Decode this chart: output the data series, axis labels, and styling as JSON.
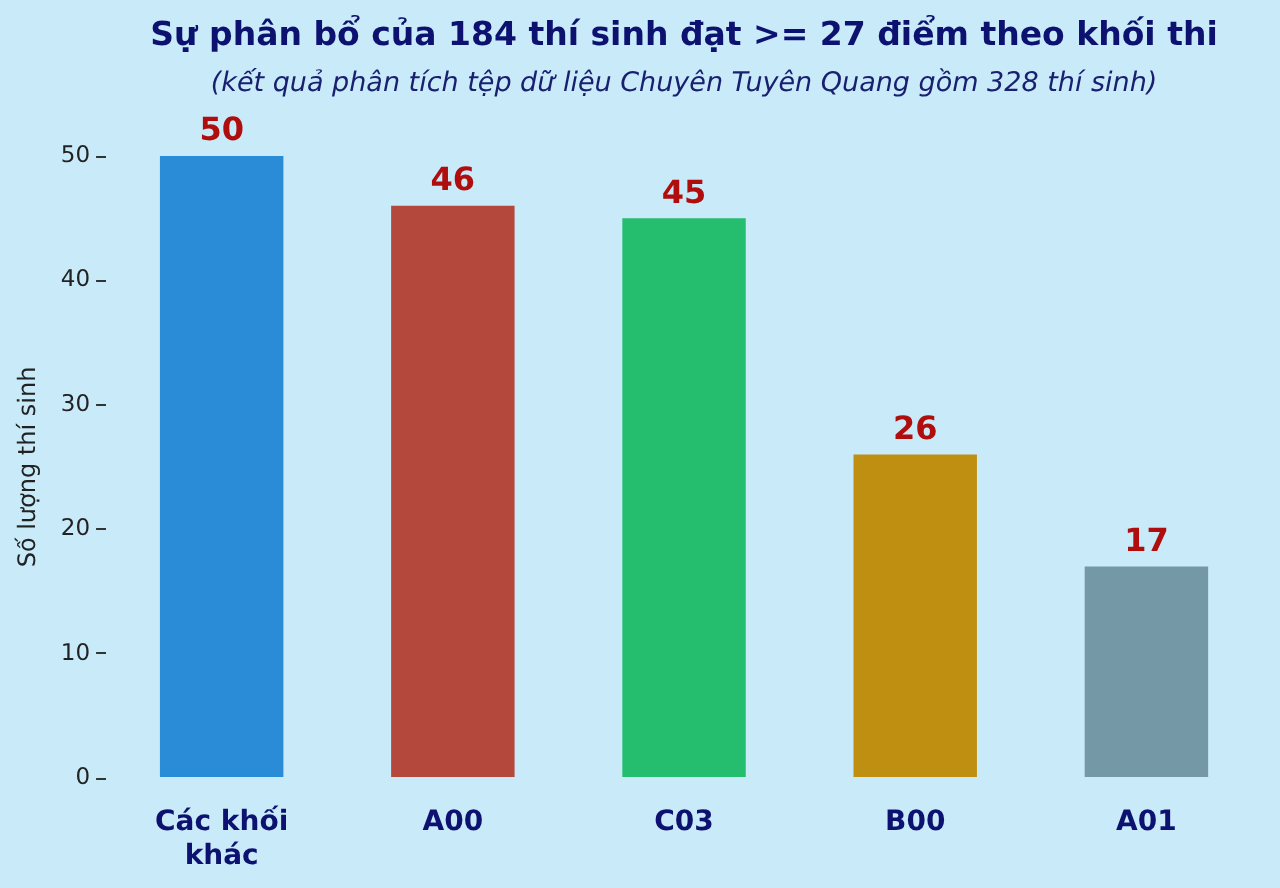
{
  "chart_data": {
    "type": "bar",
    "title": "Sự phân bổ của 184 thí sinh đạt >= 27 điểm theo khối thi",
    "subtitle": "(kết quả phân tích tệp dữ liệu Chuyên Tuyên Quang gồm 328 thí sinh)",
    "ylabel": "Số lượng thí sinh",
    "categories": [
      "Các khối\nkhác",
      "A00",
      "C03",
      "B00",
      "A01"
    ],
    "values": [
      50,
      46,
      45,
      26,
      17
    ],
    "colors": [
      "#2a8bd6",
      "#b5483d",
      "#24be6e",
      "#bf8f12",
      "#7598a6"
    ],
    "ylim": [
      0,
      50
    ],
    "yticks": [
      0,
      10,
      20,
      30,
      40,
      50
    ],
    "data_labels": true
  }
}
